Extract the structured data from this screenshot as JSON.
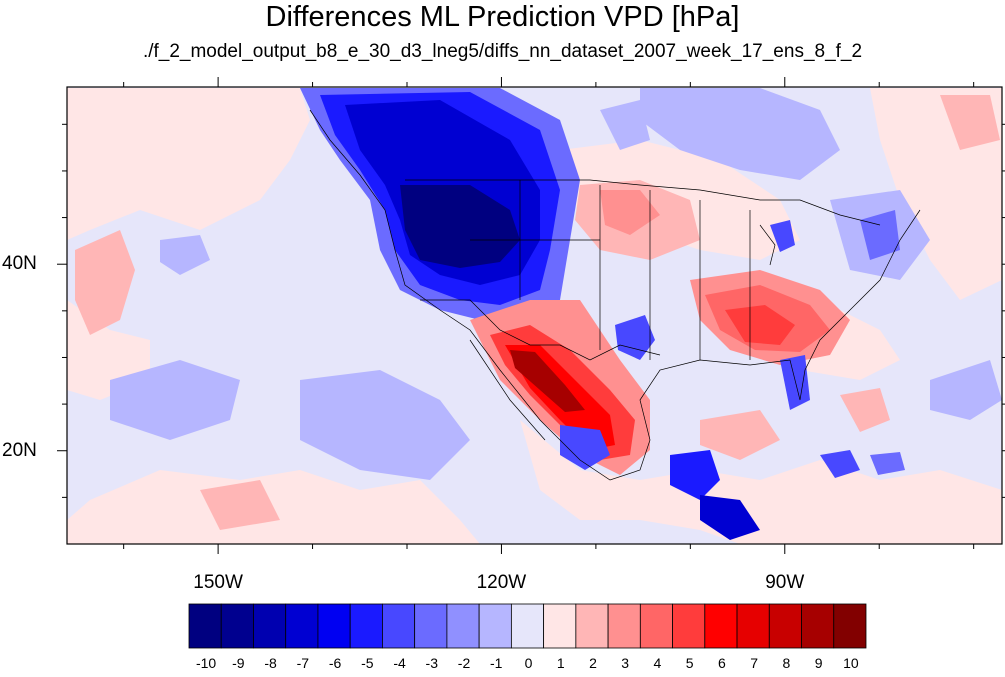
{
  "title": "Differences ML Prediction VPD [hPa]",
  "subtitle": "./f_2_model_output_b8_e_30_d3_lneg5/diffs_nn_dataset_2007_week_17_ens_8_f_2",
  "map": {
    "variable": "VPD difference",
    "units": "hPa",
    "lon_range": [
      -166,
      -67
    ],
    "lat_range": [
      10,
      59
    ],
    "lat_ticks": [
      {
        "value": 40,
        "label": "40N"
      },
      {
        "value": 20,
        "label": "20N"
      }
    ],
    "lon_ticks": [
      {
        "value": -150,
        "label": "150W"
      },
      {
        "value": -120,
        "label": "120W"
      },
      {
        "value": -90,
        "label": "90W"
      }
    ],
    "background_level_color": "#e6e6fa"
  },
  "colorbar": {
    "labels": [
      "-10",
      "-9",
      "-8",
      "-7",
      "-6",
      "-5",
      "-4",
      "-3",
      "-2",
      "-1",
      "0",
      "1",
      "2",
      "3",
      "4",
      "5",
      "6",
      "7",
      "8",
      "9",
      "10"
    ],
    "colors": [
      "#000080",
      "#00008f",
      "#0000b0",
      "#0000d2",
      "#0000f2",
      "#1a1aff",
      "#4848ff",
      "#6b6bff",
      "#9090ff",
      "#b6b6ff",
      "#e6e6fa",
      "#ffe6e6",
      "#ffb6b6",
      "#ff9090",
      "#ff6666",
      "#ff3c3c",
      "#ff0000",
      "#e60000",
      "#c80000",
      "#a60000",
      "#820000"
    ]
  }
}
